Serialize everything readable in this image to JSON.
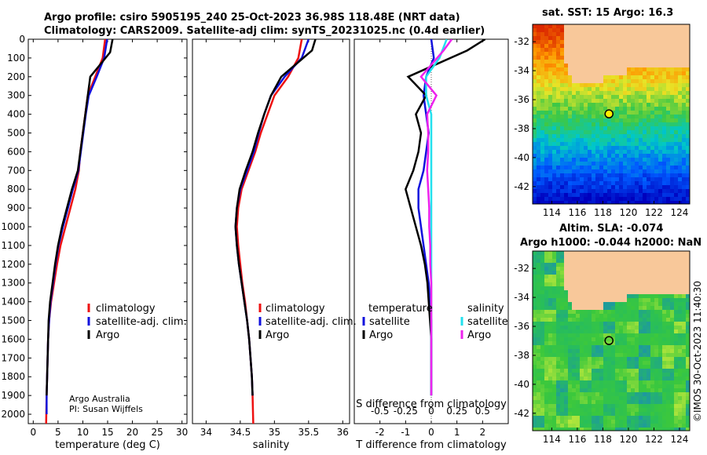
{
  "titles": {
    "line1": "Argo profile: csiro 5905195_240 25-Oct-2023 36.98S 118.48E (NRT data)",
    "line2": "Climatology: CARS2009. Satellite-adj clim: synTS_20231025.nc (0.4d earlier)",
    "sst_title": "sat. SST: 15 Argo: 16.3",
    "sla_title1": "Altim. SLA: -0.074",
    "sla_title2": "Argo h1000: -0.044 h2000: NaN",
    "watermark": "©IMOS 30-Oct-2023 11:40:30"
  },
  "credits": {
    "line1": "Argo Australia",
    "line2": "PI: Susan Wijffels"
  },
  "legend_temp": [
    "climatology",
    "satellite-adj. clim.",
    "Argo"
  ],
  "legend_sal": [
    "climatology",
    "satellite-adj. clim.",
    "Argo"
  ],
  "legend_diff": {
    "temp_header": "temperature",
    "sal_header": "salinity",
    "temp_items": [
      "satellite",
      "Argo"
    ],
    "sal_items": [
      "satellite",
      "Argo"
    ]
  },
  "colors": {
    "climatology": "#ee1111",
    "satellite": "#1111dd",
    "argo": "#000000",
    "sal_sat": "#22e0ee",
    "sal_argo": "#ee22ee",
    "land": "#f8c89a"
  },
  "chart_data": [
    {
      "type": "line",
      "title": "",
      "xlabel": "temperature (deg C)",
      "ylabel": "",
      "xlim": [
        -1,
        31
      ],
      "ylim": [
        2050,
        0
      ],
      "xticks": [
        0,
        5,
        10,
        15,
        20,
        25,
        30
      ],
      "yticks": [
        0,
        100,
        200,
        300,
        400,
        500,
        600,
        700,
        800,
        900,
        1000,
        1100,
        1200,
        1300,
        1400,
        1500,
        1600,
        1700,
        1800,
        1900,
        2000
      ],
      "series": [
        {
          "name": "climatology",
          "x": [
            14.5,
            14.0,
            12.5,
            11.0,
            10.5,
            10.0,
            9.5,
            9.2,
            8.5,
            7.5,
            6.5,
            5.5,
            4.8,
            4.2,
            3.6,
            3.2,
            3.0,
            2.9,
            2.8,
            2.7,
            2.6
          ],
          "y": [
            0,
            100,
            200,
            300,
            400,
            500,
            600,
            700,
            800,
            900,
            1000,
            1100,
            1200,
            1300,
            1400,
            1500,
            1600,
            1700,
            1800,
            1900,
            2050
          ]
        },
        {
          "name": "satellite-adj. clim.",
          "x": [
            14.9,
            14.3,
            12.8,
            11.2,
            10.6,
            10.1,
            9.6,
            9.1,
            8.0,
            7.0,
            6.0,
            5.1,
            4.5,
            4.0,
            3.5,
            3.2,
            3.0,
            2.9,
            2.8,
            2.7,
            2.7
          ],
          "y": [
            0,
            100,
            200,
            300,
            400,
            500,
            600,
            700,
            800,
            900,
            1000,
            1100,
            1200,
            1300,
            1400,
            1500,
            1600,
            1700,
            1800,
            1900,
            2000
          ]
        },
        {
          "name": "Argo",
          "x": [
            16.0,
            15.5,
            11.5,
            11.0,
            10.5,
            10.0,
            9.5,
            9.0,
            7.8,
            6.8,
            5.8,
            5.0,
            4.4,
            3.9,
            3.4,
            3.1,
            3.0,
            2.9,
            2.8,
            2.7
          ],
          "y": [
            0,
            70,
            200,
            300,
            400,
            500,
            600,
            700,
            800,
            900,
            1000,
            1100,
            1200,
            1300,
            1400,
            1500,
            1600,
            1700,
            1800,
            1900
          ]
        }
      ]
    },
    {
      "type": "line",
      "xlabel": "salinity",
      "xlim": [
        33.8,
        36.1
      ],
      "ylim": [
        2050,
        0
      ],
      "xticks": [
        34,
        34.5,
        35,
        35.5,
        36
      ],
      "xticklabels": [
        "34",
        "34.5",
        "35",
        "35.5",
        "36"
      ],
      "series": [
        {
          "name": "climatology",
          "x": [
            35.4,
            35.35,
            35.2,
            35.0,
            34.9,
            34.8,
            34.72,
            34.62,
            34.52,
            34.47,
            34.45,
            34.47,
            34.5,
            34.53,
            34.57,
            34.6,
            34.63,
            34.65,
            34.67,
            34.68,
            34.69
          ],
          "y": [
            0,
            100,
            200,
            300,
            400,
            500,
            600,
            700,
            800,
            900,
            1000,
            1100,
            1200,
            1300,
            1400,
            1500,
            1600,
            1700,
            1800,
            1900,
            2050
          ]
        },
        {
          "name": "satellite-adj. clim.",
          "x": [
            35.5,
            35.4,
            35.15,
            34.95,
            34.85,
            34.77,
            34.7,
            34.6,
            34.5,
            34.45,
            34.43,
            34.45,
            34.48,
            34.52,
            34.56,
            34.6,
            34.63,
            34.65,
            34.67,
            34.68
          ],
          "y": [
            0,
            100,
            200,
            300,
            400,
            500,
            600,
            700,
            800,
            900,
            1000,
            1100,
            1200,
            1300,
            1400,
            1500,
            1600,
            1700,
            1800,
            1900
          ]
        },
        {
          "name": "Argo",
          "x": [
            35.6,
            35.55,
            35.1,
            34.95,
            34.85,
            34.76,
            34.68,
            34.58,
            34.49,
            34.45,
            34.43,
            34.45,
            34.48,
            34.52,
            34.56,
            34.6,
            34.63,
            34.65,
            34.67,
            34.68
          ],
          "y": [
            0,
            60,
            200,
            300,
            400,
            500,
            600,
            700,
            800,
            900,
            1000,
            1100,
            1200,
            1300,
            1400,
            1500,
            1600,
            1700,
            1800,
            1900
          ]
        }
      ]
    },
    {
      "type": "line",
      "xlabel": "T difference from climatology",
      "xlabel2": "S difference from climatology",
      "xlim": [
        -3,
        3
      ],
      "ylim": [
        2050,
        0
      ],
      "xticks": [
        -2,
        -1,
        0,
        1,
        2
      ],
      "xticklabels": [
        "-2",
        "-1",
        "0",
        "1",
        "2"
      ],
      "sticks": [
        -0.5,
        -0.25,
        0,
        0.25,
        0.5
      ],
      "sticklabels": [
        "-0.5",
        "-0.25",
        "0",
        "0.25",
        "0.5"
      ],
      "series": [
        {
          "name": "temperature satellite",
          "x": [
            0.0,
            0.1,
            -0.2,
            -0.3,
            -0.2,
            -0.1,
            -0.2,
            -0.3,
            -0.5,
            -0.5,
            -0.4,
            -0.3,
            -0.2,
            -0.1,
            -0.05,
            0.0,
            0.0,
            0.0,
            0.0,
            0.0
          ],
          "y": [
            0,
            100,
            200,
            300,
            400,
            500,
            600,
            700,
            800,
            900,
            1000,
            1100,
            1200,
            1300,
            1400,
            1500,
            1600,
            1700,
            1800,
            1900
          ]
        },
        {
          "name": "temperature Argo",
          "x": [
            2.1,
            1.4,
            -0.9,
            -0.2,
            -0.6,
            -0.4,
            -0.5,
            -0.7,
            -1.0,
            -0.8,
            -0.6,
            -0.4,
            -0.25,
            -0.15,
            -0.1,
            -0.05,
            0.0,
            0.0,
            0.0,
            0.0
          ],
          "y": [
            0,
            60,
            200,
            300,
            400,
            500,
            600,
            700,
            800,
            900,
            1000,
            1100,
            1200,
            1300,
            1400,
            1500,
            1600,
            1700,
            1800,
            1900
          ]
        },
        {
          "name": "salinity satellite",
          "x": [
            0.15,
            0.08,
            -0.05,
            -0.05,
            0.0,
            0.0,
            0.0,
            0.0,
            0.0,
            0.0,
            0.0,
            0.0,
            0.0,
            0.0,
            0.0,
            0.0,
            0.0,
            0.0,
            0.0,
            0.0
          ],
          "y": [
            0,
            100,
            200,
            300,
            400,
            500,
            600,
            700,
            800,
            900,
            1000,
            1100,
            1200,
            1300,
            1400,
            1500,
            1600,
            1700,
            1800,
            1900
          ]
        },
        {
          "name": "salinity Argo",
          "x": [
            0.2,
            0.12,
            -0.1,
            0.05,
            -0.04,
            -0.03,
            -0.03,
            -0.04,
            -0.03,
            -0.02,
            -0.02,
            -0.01,
            -0.01,
            0.0,
            0.0,
            0.0,
            0.0,
            0.0,
            0.0,
            0.0
          ],
          "y": [
            0,
            60,
            200,
            300,
            400,
            500,
            600,
            700,
            800,
            900,
            1000,
            1100,
            1200,
            1300,
            1400,
            1500,
            1600,
            1700,
            1800,
            1900
          ]
        }
      ]
    },
    {
      "type": "heatmap",
      "title": "sat. SST: 15 Argo: 16.3",
      "xlim": [
        112.5,
        124.8
      ],
      "ylim": [
        -43.2,
        -30.8
      ],
      "xticks": [
        114,
        116,
        118,
        120,
        122,
        124
      ],
      "yticks": [
        -32,
        -34,
        -36,
        -38,
        -40,
        -42
      ],
      "marker": {
        "lon": 118.48,
        "lat": -36.98
      }
    },
    {
      "type": "heatmap",
      "title": "Altim. SLA: -0.074",
      "xlim": [
        112.5,
        124.8
      ],
      "ylim": [
        -43.2,
        -30.8
      ],
      "xticks": [
        114,
        116,
        118,
        120,
        122,
        124
      ],
      "yticks": [
        -32,
        -34,
        -36,
        -38,
        -40,
        -42
      ],
      "marker": {
        "lon": 118.48,
        "lat": -36.98
      }
    }
  ]
}
